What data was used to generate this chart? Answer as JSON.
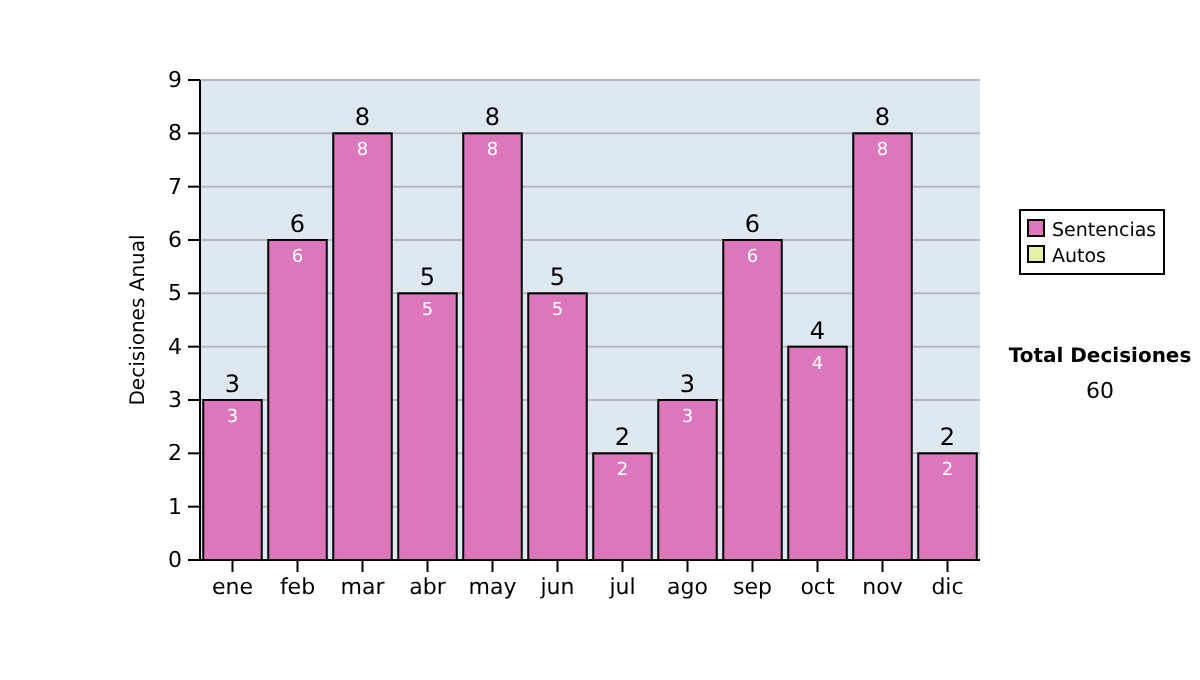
{
  "chart_data": {
    "type": "bar",
    "ylabel": "Decisiones Anual",
    "categories": [
      "ene",
      "feb",
      "mar",
      "abr",
      "may",
      "jun",
      "jul",
      "ago",
      "sep",
      "oct",
      "nov",
      "dic"
    ],
    "series": [
      {
        "name": "Sentencias",
        "color": "#dd77bb",
        "values": [
          3,
          6,
          8,
          5,
          8,
          5,
          2,
          3,
          6,
          4,
          8,
          2
        ],
        "value_labels": [
          "3",
          "6",
          "8",
          "5",
          "8",
          "5",
          "2",
          "3",
          "6",
          "4",
          "8",
          "2"
        ]
      },
      {
        "name": "Autos",
        "color": "#e8f0a8",
        "values": [
          0,
          0,
          0,
          0,
          0,
          0,
          0,
          0,
          0,
          0,
          0,
          0
        ],
        "value_labels": [
          null,
          null,
          null,
          null,
          null,
          null,
          null,
          null,
          null,
          null,
          null,
          null
        ]
      }
    ],
    "stacked": true,
    "totals": [
      "3",
      "6",
      "8",
      "5",
      "8",
      "5",
      "2",
      "3",
      "6",
      "4",
      "8",
      "2"
    ],
    "ylim": [
      0,
      9
    ],
    "yticks": [
      0,
      1,
      2,
      3,
      4,
      5,
      6,
      7,
      8,
      9
    ],
    "grid": "y",
    "legend": "right",
    "annotations": [
      "Total Decisiones",
      "60"
    ]
  }
}
